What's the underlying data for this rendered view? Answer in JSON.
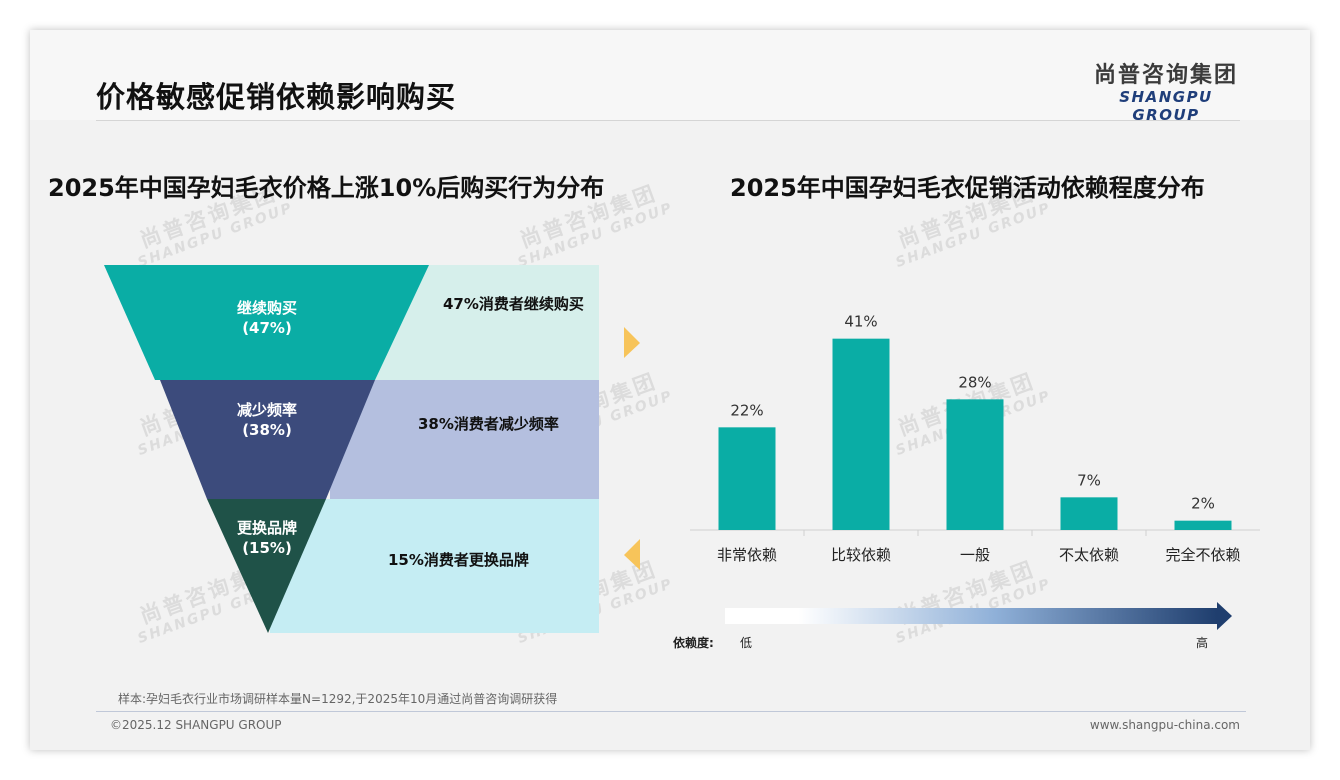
{
  "header": {
    "title": "价格敏感促销依赖影响购买",
    "logo_cn": "尚普咨询集团",
    "logo_en": "SHANGPU GROUP"
  },
  "watermark": {
    "cn": "尚普咨询集团",
    "en": "SHANGPU GROUP"
  },
  "left_chart": {
    "title": "2025年中国孕妇毛衣价格上涨10%后购买行为分布"
  },
  "right_chart": {
    "title": "2025年中国孕妇毛衣促销活动依赖程度分布",
    "legend": {
      "label": "依赖度:",
      "low": "低",
      "high": "高"
    }
  },
  "chart_data": [
    {
      "type": "funnel",
      "title": "2025年中国孕妇毛衣价格上涨10%后购买行为分布",
      "stages": [
        {
          "name": "继续购买",
          "pct_label": "(47%)",
          "value": 47,
          "desc": "47%消费者继续购买",
          "color": "#0aada5",
          "band_color": "#d6efeb"
        },
        {
          "name": "减少频率",
          "pct_label": "(38%)",
          "value": 38,
          "desc": "38%消费者减少频率",
          "color": "#3c4b7c",
          "band_color": "#b4bfdf"
        },
        {
          "name": "更换品牌",
          "pct_label": "(15%)",
          "value": 15,
          "desc": "15%消费者更换品牌",
          "color": "#1f5248",
          "band_color": "#c5edf3"
        }
      ]
    },
    {
      "type": "bar",
      "title": "2025年中国孕妇毛衣促销活动依赖程度分布",
      "categories": [
        "非常依赖",
        "比较依赖",
        "一般",
        "不太依赖",
        "完全不依赖"
      ],
      "values": [
        22,
        41,
        28,
        7,
        2
      ],
      "value_labels": [
        "22%",
        "41%",
        "28%",
        "7%",
        "2%"
      ],
      "color": "#0aada5",
      "ylim": [
        0,
        45
      ]
    }
  ],
  "footer": {
    "note": "样本:孕妇毛衣行业市场调研样本量N=1292,于2025年10月通过尚普咨询调研获得",
    "copyright": "©2025.12 SHANGPU GROUP",
    "website": "www.shangpu-china.com"
  },
  "colors": {
    "accent": "#0aada5",
    "arrow": "#f7c45a",
    "navy": "#1f3e7a"
  }
}
